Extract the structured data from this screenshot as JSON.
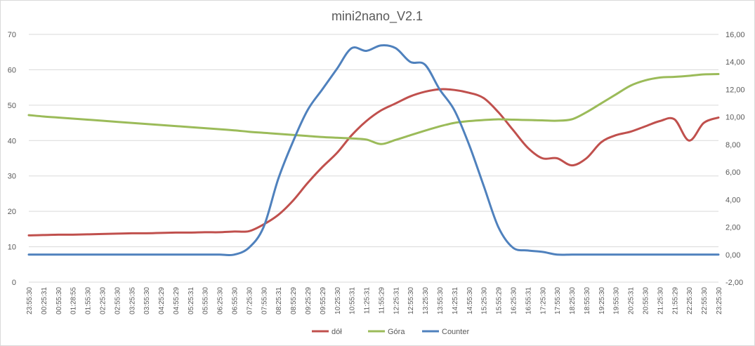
{
  "chart_data": {
    "type": "line",
    "title": "mini2nano_V2.1",
    "xlabel": "",
    "ylabel": "",
    "ylim": [
      0,
      70
    ],
    "y_ticks": [
      "0",
      "10",
      "20",
      "30",
      "40",
      "50",
      "60",
      "70"
    ],
    "y2lim": [
      -2,
      16
    ],
    "y2_ticks": [
      "-2,00",
      "0,00",
      "2,00",
      "4,00",
      "6,00",
      "8,00",
      "10,00",
      "12,00",
      "14,00",
      "16,00"
    ],
    "grid": true,
    "legend_position": "bottom",
    "categories": [
      "23:55:30",
      "00:25:31",
      "00:55:30",
      "01:28:55",
      "01:55:30",
      "02:25:30",
      "02:55:30",
      "03:25:35",
      "03:55:30",
      "04:25:29",
      "04:55:29",
      "05:25:31",
      "05:55:30",
      "06:25:30",
      "06:55:30",
      "07:25:30",
      "07:55:30",
      "08:25:31",
      "08:55:29",
      "09:25:29",
      "09:55:29",
      "10:25:30",
      "10:55:31",
      "11:25:31",
      "11:55:29",
      "12:25:31",
      "12:55:30",
      "13:25:30",
      "13:55:30",
      "14:25:31",
      "14:55:30",
      "15:25:30",
      "15:55:29",
      "16:25:30",
      "16:55:31",
      "17:25:30",
      "17:55:30",
      "18:25:30",
      "18:55:30",
      "19:25:30",
      "19:55:30",
      "20:25:31",
      "20:55:30",
      "21:25:30",
      "21:55:29",
      "22:25:30",
      "22:55:30",
      "23:25:30"
    ],
    "series": [
      {
        "name": "dół",
        "color": "#c0504d",
        "axis": "left",
        "values": [
          13.2,
          13.3,
          13.4,
          13.4,
          13.5,
          13.6,
          13.7,
          13.8,
          13.8,
          13.9,
          14.0,
          14.0,
          14.1,
          14.1,
          14.3,
          14.4,
          16.3,
          19.0,
          23.0,
          28.0,
          32.5,
          36.5,
          41.5,
          45.5,
          48.5,
          50.5,
          52.5,
          53.8,
          54.5,
          54.3,
          53.5,
          52.0,
          48.0,
          43.0,
          38.0,
          35.0,
          35.0,
          33.0,
          35.0,
          39.5,
          41.5,
          42.5,
          44.0,
          45.5,
          46.0,
          40.0,
          45.0,
          46.5
        ]
      },
      {
        "name": "Góra",
        "color": "#9bbb59",
        "axis": "left",
        "values": [
          47.2,
          46.8,
          46.5,
          46.2,
          45.9,
          45.6,
          45.3,
          45.0,
          44.7,
          44.4,
          44.1,
          43.8,
          43.5,
          43.2,
          42.9,
          42.5,
          42.2,
          41.9,
          41.6,
          41.3,
          41.0,
          40.8,
          40.6,
          40.3,
          39.0,
          40.2,
          41.5,
          42.8,
          44.0,
          45.0,
          45.5,
          45.8,
          46.0,
          45.9,
          45.8,
          45.7,
          45.6,
          46.0,
          48.0,
          50.5,
          53.0,
          55.5,
          57.0,
          57.8,
          58.0,
          58.3,
          58.7,
          58.8
        ]
      },
      {
        "name": "Counter",
        "color": "#4f81bd",
        "axis": "right",
        "values": [
          0,
          0,
          0,
          0,
          0,
          0,
          0,
          0,
          0,
          0,
          0,
          0,
          0,
          0,
          0,
          0.5,
          2.0,
          5.5,
          8.2,
          10.5,
          12.0,
          13.5,
          15.0,
          14.8,
          15.2,
          15.0,
          14.0,
          13.8,
          12.0,
          10.5,
          8.0,
          5.0,
          2.0,
          0.5,
          0.3,
          0.2,
          0,
          0,
          0,
          0,
          0,
          0,
          0,
          0,
          0,
          0,
          0,
          0
        ]
      }
    ]
  }
}
